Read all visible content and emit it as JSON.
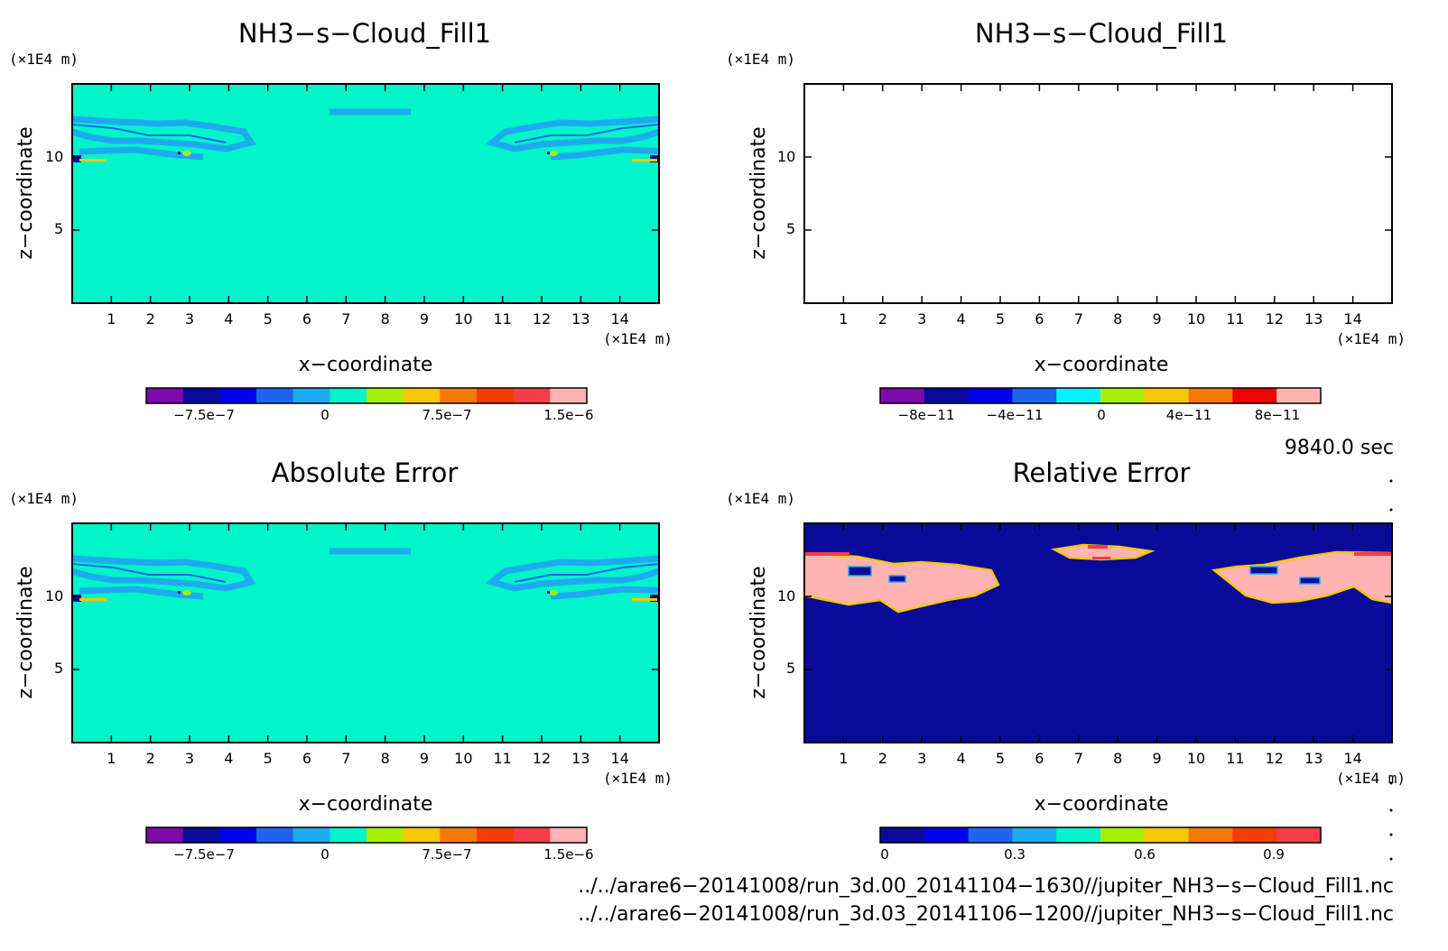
{
  "panels": [
    {
      "title": "NH3−s−Cloud_Fill1",
      "y_unit": "(×1E4 m)",
      "x_unit": "(×1E4 m)",
      "xlabel": "x−coordinate",
      "ylabel": "z−coordinate",
      "xticks": [
        "1",
        "2",
        "3",
        "4",
        "5",
        "6",
        "7",
        "8",
        "9",
        "10",
        "11",
        "12",
        "13",
        "14"
      ],
      "yticks": [
        "5",
        "10"
      ],
      "colorbar": {
        "colors": [
          "#7c0aa8",
          "#0a0a9a",
          "#0000f0",
          "#1e64f0",
          "#1eaaf0",
          "#00f5c8",
          "#a5f000",
          "#f5c800",
          "#f57800",
          "#f53c00",
          "#f53c46",
          "#ffb4b4"
        ],
        "labels": [
          "−7.5e−7",
          "0",
          "7.5e−7",
          "1.5e−6"
        ]
      }
    },
    {
      "title": "NH3−s−Cloud_Fill1",
      "y_unit": "(×1E4 m)",
      "x_unit": "(×1E4 m)",
      "xlabel": "x−coordinate",
      "ylabel": "z−coordinate",
      "xticks": [
        "1",
        "2",
        "3",
        "4",
        "5",
        "6",
        "7",
        "8",
        "9",
        "10",
        "11",
        "12",
        "13",
        "14"
      ],
      "yticks": [
        "5",
        "10"
      ],
      "colorbar": {
        "colors": [
          "#7c0aa8",
          "#0a0a9a",
          "#0000f0",
          "#1e64f0",
          "#00f5ff",
          "#a5f000",
          "#f5c800",
          "#f57800",
          "#f00000",
          "#ffb4b4"
        ],
        "labels": [
          "−8e−11",
          "−4e−11",
          "0",
          "4e−11",
          "8e−11"
        ]
      }
    },
    {
      "title": "Absolute Error",
      "y_unit": "(×1E4 m)",
      "x_unit": "(×1E4 m)",
      "xlabel": "x−coordinate",
      "ylabel": "z−coordinate",
      "xticks": [
        "1",
        "2",
        "3",
        "4",
        "5",
        "6",
        "7",
        "8",
        "9",
        "10",
        "11",
        "12",
        "13",
        "14"
      ],
      "yticks": [
        "5",
        "10"
      ],
      "colorbar": {
        "colors": [
          "#7c0aa8",
          "#0a0a9a",
          "#0000f0",
          "#1e64f0",
          "#1eaaf0",
          "#00f5c8",
          "#a5f000",
          "#f5c800",
          "#f57800",
          "#f53c00",
          "#f53c46",
          "#ffb4b4"
        ],
        "labels": [
          "−7.5e−7",
          "0",
          "7.5e−7",
          "1.5e−6"
        ]
      }
    },
    {
      "title": "Relative Error",
      "y_unit": "(×1E4 m)",
      "x_unit": "(×1E4 m)",
      "xlabel": "x−coordinate",
      "ylabel": "z−coordinate",
      "xticks": [
        "1",
        "2",
        "3",
        "4",
        "5",
        "6",
        "7",
        "8",
        "9",
        "10",
        "11",
        "12",
        "13",
        "14"
      ],
      "yticks": [
        "5",
        "10"
      ],
      "colorbar": {
        "colors": [
          "#0a0a9a",
          "#0000f0",
          "#1e64f0",
          "#1eaaf0",
          "#00f5c8",
          "#a5f000",
          "#f5c800",
          "#f57800",
          "#f53c00",
          "#f53c46"
        ],
        "labels": [
          "0",
          "0.3",
          "0.6",
          "0.9"
        ]
      }
    }
  ],
  "time_label": "9840.0 sec",
  "file_paths": [
    "../../arare6−20141008/run_3d.00_20141104−1630//jupiter_NH3−s−Cloud_Fill1.nc",
    "../../arare6−20141008/run_3d.03_20141106−1200//jupiter_NH3−s−Cloud_Fill1.nc"
  ],
  "chart_data": [
    {
      "type": "heatmap",
      "title": "NH3−s−Cloud_Fill1",
      "xlabel": "x−coordinate",
      "ylabel": "z−coordinate",
      "xlim": [
        0,
        15
      ],
      "ylim": [
        0,
        15
      ],
      "dominant_value": 0,
      "colorbar_range": [
        -1e-06,
        1.7e-06
      ]
    },
    {
      "type": "heatmap",
      "title": "NH3−s−Cloud_Fill1",
      "xlabel": "x−coordinate",
      "ylabel": "z−coordinate",
      "xlim": [
        0,
        15
      ],
      "ylim": [
        0,
        15
      ],
      "colorbar_range": [
        -1e-10,
        1e-10
      ]
    },
    {
      "type": "heatmap",
      "title": "Absolute Error",
      "xlabel": "x−coordinate",
      "ylabel": "z−coordinate",
      "xlim": [
        0,
        15
      ],
      "ylim": [
        0,
        15
      ],
      "dominant_value": 0,
      "colorbar_range": [
        -1e-06,
        1.7e-06
      ]
    },
    {
      "type": "heatmap",
      "title": "Relative Error",
      "xlabel": "x−coordinate",
      "ylabel": "z−coordinate",
      "xlim": [
        0,
        15
      ],
      "ylim": [
        0,
        15
      ],
      "dominant_value": 0,
      "cloud_value": 1,
      "colorbar_range": [
        0,
        1
      ]
    }
  ]
}
